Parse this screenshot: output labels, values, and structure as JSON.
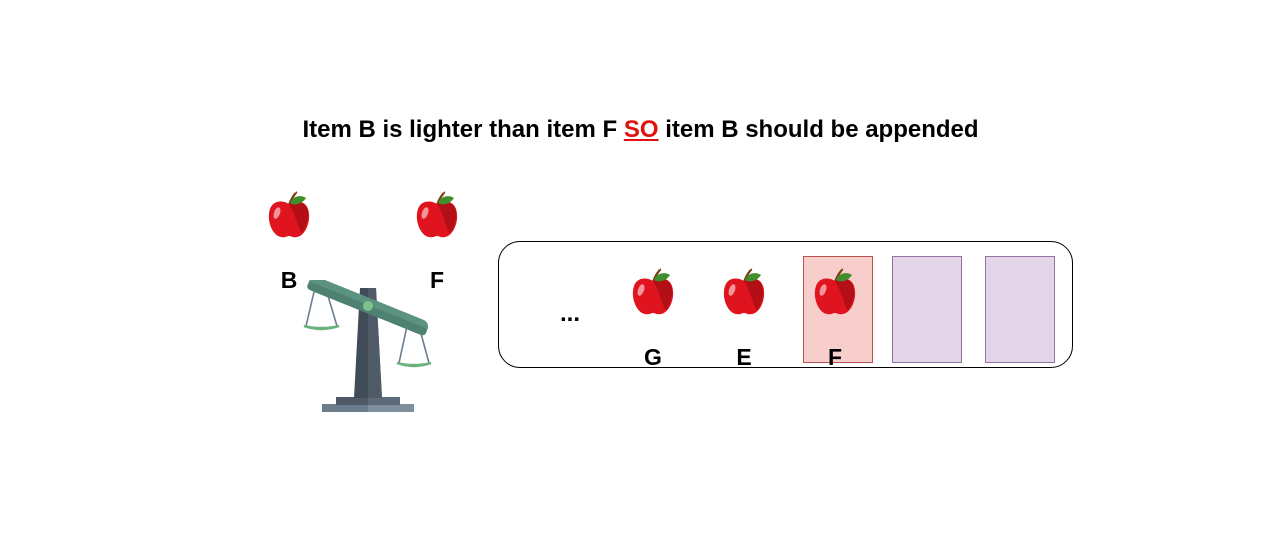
{
  "caption": {
    "part1": "Item B is lighter than item F",
    "emphasis": "SO",
    "part2": "item B should be appended",
    "emphasis_color": "#e0120f"
  },
  "scale": {
    "left_item": "B",
    "right_item": "F",
    "left_icon": "apple-icon",
    "right_icon": "apple-icon",
    "tilt": "left-up"
  },
  "list": {
    "ellipsis": "...",
    "items": [
      {
        "label": "G",
        "icon": "apple-icon"
      },
      {
        "label": "E",
        "icon": "apple-icon"
      },
      {
        "label": "F",
        "icon": "apple-icon",
        "highlighted": true
      }
    ],
    "empty_slots": 2
  },
  "colors": {
    "highlight_fill": "#f8cecc",
    "highlight_border": "#b85450",
    "empty_fill": "#e1d5e7",
    "empty_border": "#9673a6",
    "apple_red": "#e0141e",
    "beam_green": "#5b9280"
  }
}
